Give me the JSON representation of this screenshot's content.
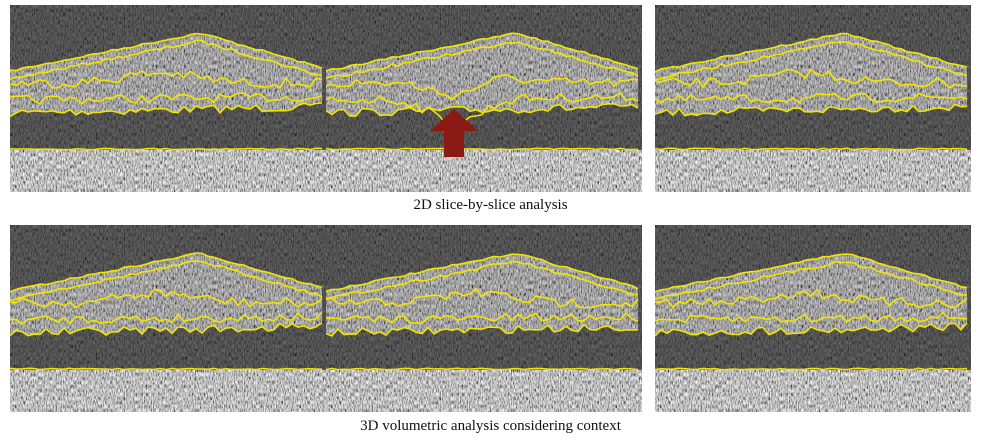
{
  "rows": [
    {
      "caption": "2D slice-by-slice analysis"
    },
    {
      "caption": "3D volumetric analysis considering context"
    }
  ]
}
